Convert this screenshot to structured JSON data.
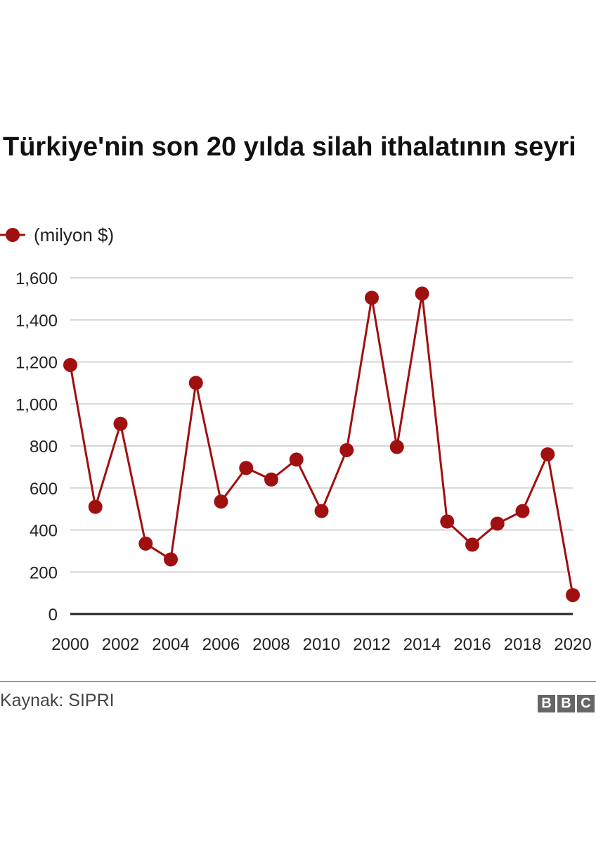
{
  "title": "Türkiye'nin son 20 yılda silah ithalatının seyri",
  "legend_label": "(milyon $)",
  "source": "Kaynak: SIPRI",
  "logo": {
    "letters": [
      "B",
      "B",
      "C"
    ]
  },
  "colors": {
    "series": "#a01010",
    "grid": "#d6d6d6",
    "axis": "#222222"
  },
  "chart_data": {
    "type": "line",
    "x": [
      2000,
      2001,
      2002,
      2003,
      2004,
      2005,
      2006,
      2007,
      2008,
      2009,
      2010,
      2011,
      2012,
      2013,
      2014,
      2015,
      2016,
      2017,
      2018,
      2019,
      2020
    ],
    "series": [
      {
        "name": "(milyon $)",
        "values": [
          1185,
          510,
          905,
          335,
          260,
          1100,
          535,
          695,
          640,
          735,
          490,
          780,
          1505,
          795,
          1525,
          440,
          330,
          430,
          490,
          760,
          90
        ]
      }
    ],
    "ylim": [
      0,
      1600
    ],
    "yticks": [
      0,
      200,
      400,
      600,
      800,
      1000,
      1200,
      1400,
      1600
    ],
    "ytick_labels": [
      "0",
      "200",
      "400",
      "600",
      "800",
      "1,000",
      "1,200",
      "1,400",
      "1,600"
    ],
    "xticks": [
      2000,
      2002,
      2004,
      2006,
      2008,
      2010,
      2012,
      2014,
      2016,
      2018,
      2020
    ],
    "xtick_labels": [
      "2000",
      "2002",
      "2004",
      "2006",
      "2008",
      "2010",
      "2012",
      "2014",
      "2016",
      "2018",
      "2020"
    ],
    "grid": true,
    "legend_position": "top-left"
  }
}
